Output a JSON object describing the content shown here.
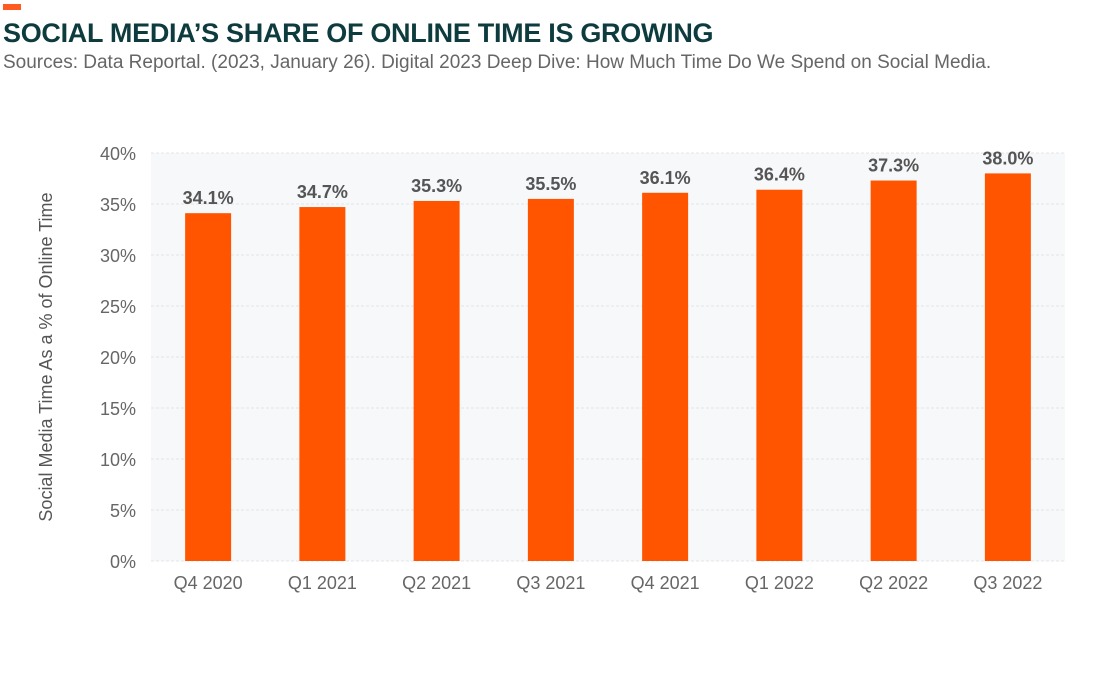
{
  "header": {
    "title": "SOCIAL MEDIA’S SHARE OF ONLINE TIME IS GROWING",
    "subtitle": "Sources: Data Reportal. (2023, January 26). Digital 2023 Deep Dive: How Much Time Do We Spend on Social Media."
  },
  "chart_data": {
    "type": "bar",
    "title": "SOCIAL MEDIA’S SHARE OF ONLINE TIME IS GROWING",
    "categories": [
      "Q4 2020",
      "Q1 2021",
      "Q2 2021",
      "Q3 2021",
      "Q4 2021",
      "Q1 2022",
      "Q2 2022",
      "Q3 2022"
    ],
    "values": [
      34.1,
      34.7,
      35.3,
      35.5,
      36.1,
      36.4,
      37.3,
      38.0
    ],
    "data_labels": [
      "34.1%",
      "34.7%",
      "35.3%",
      "35.5%",
      "36.1%",
      "36.4%",
      "37.3%",
      "38.0%"
    ],
    "xlabel": "",
    "ylabel": "Social Media Time As a % of Online Time",
    "ylim": [
      0,
      40
    ],
    "yticks": [
      "0%",
      "5%",
      "10%",
      "15%",
      "20%",
      "25%",
      "30%",
      "35%",
      "40%"
    ],
    "grid": true,
    "colors": {
      "bar": "#ff5500",
      "plot_bg": "#f7f8fa",
      "title": "#0d3b3e",
      "accent": "#ff5a1f"
    }
  }
}
